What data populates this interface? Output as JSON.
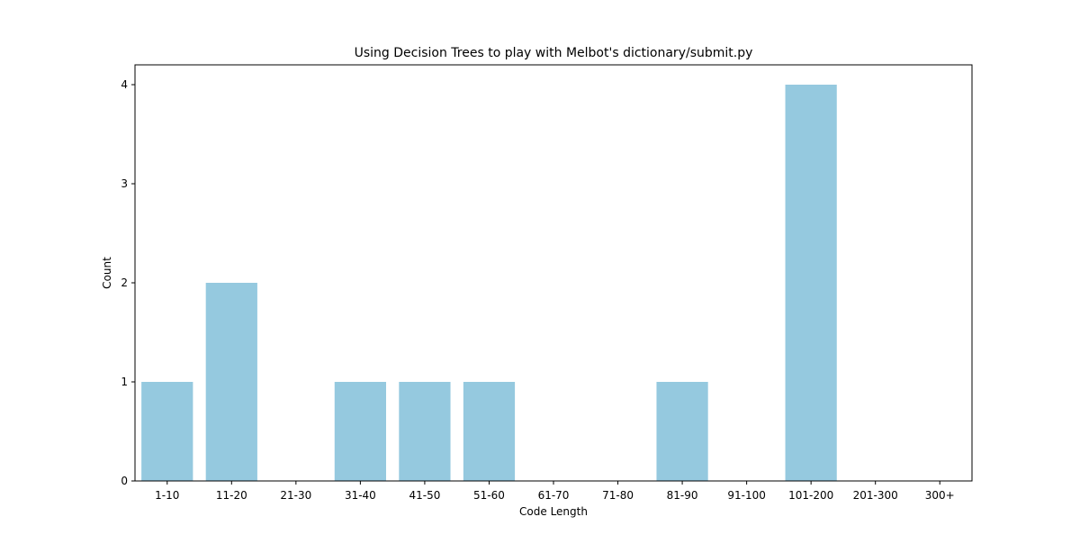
{
  "chart_data": {
    "type": "bar",
    "title": "Using Decision Trees to play with Melbot's dictionary/submit.py",
    "xlabel": "Code Length",
    "ylabel": "Count",
    "categories": [
      "1-10",
      "11-20",
      "21-30",
      "31-40",
      "41-50",
      "51-60",
      "61-70",
      "71-80",
      "81-90",
      "91-100",
      "101-200",
      "201-300",
      "300+"
    ],
    "values": [
      1,
      2,
      0,
      1,
      1,
      1,
      0,
      0,
      1,
      0,
      4,
      0,
      0
    ],
    "ylim": [
      0,
      4.2
    ],
    "yticks": [
      "0",
      "1",
      "2",
      "3",
      "4"
    ],
    "bar_color": "#95c9df",
    "grid": false,
    "legend": "none"
  }
}
